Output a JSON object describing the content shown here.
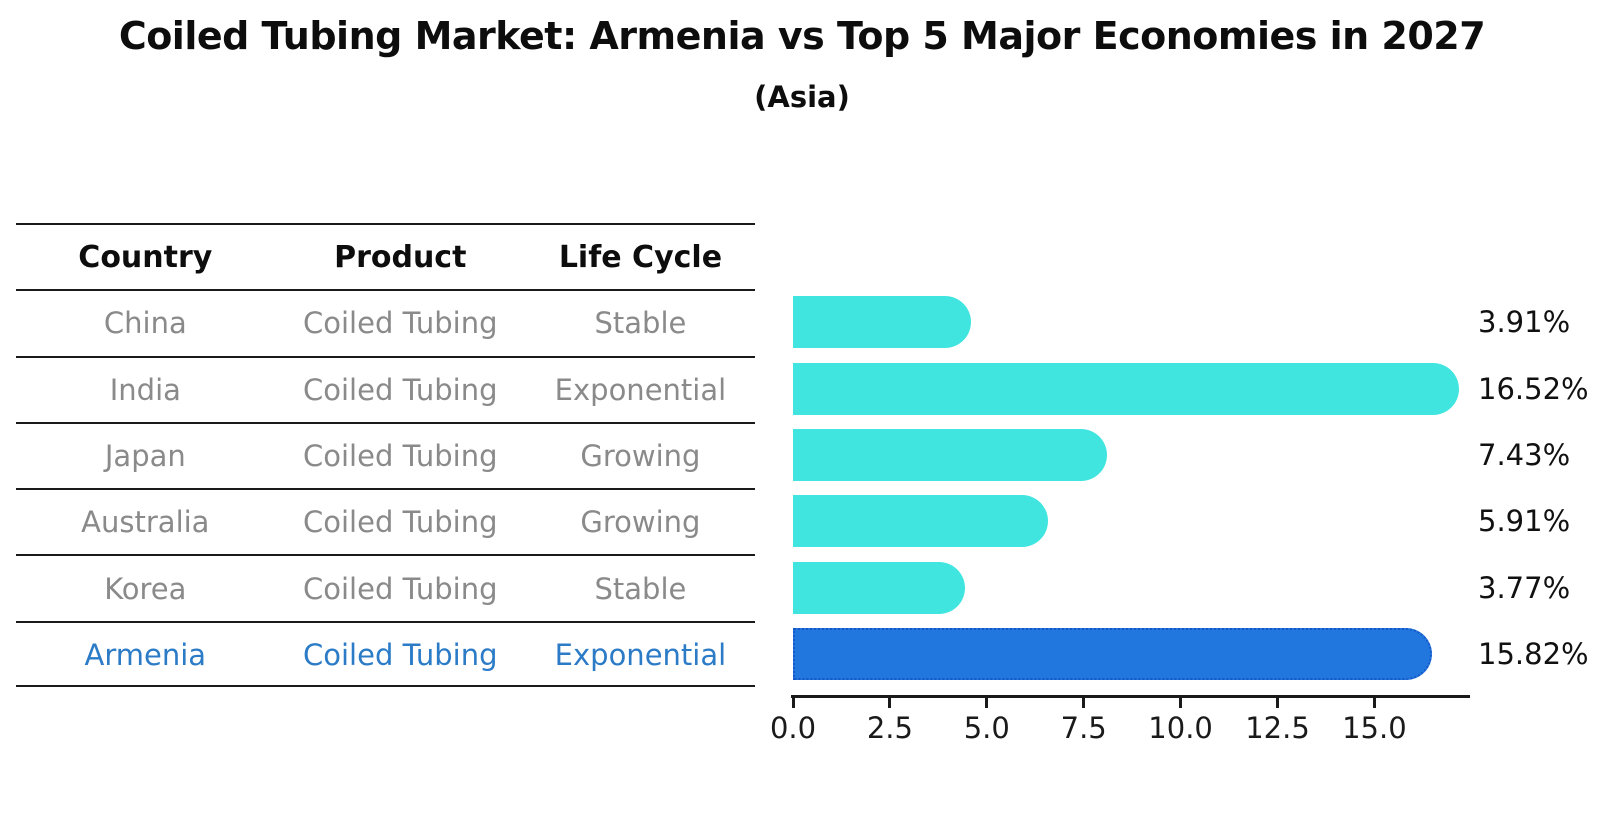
{
  "title": "Coiled Tubing Market: Armenia vs Top 5 Major Economies in 2027",
  "subtitle": "(Asia)",
  "table": {
    "headers": [
      "Country",
      "Product",
      "Life Cycle"
    ],
    "rows": [
      {
        "cells": [
          "China",
          "Coiled Tubing",
          "Stable"
        ],
        "highlighted": false
      },
      {
        "cells": [
          "India",
          "Coiled Tubing",
          "Exponential"
        ],
        "highlighted": false
      },
      {
        "cells": [
          "Japan",
          "Coiled Tubing",
          "Growing"
        ],
        "highlighted": false
      },
      {
        "cells": [
          "Australia",
          "Coiled Tubing",
          "Growing"
        ],
        "highlighted": false
      },
      {
        "cells": [
          "Korea",
          "Coiled Tubing",
          "Stable"
        ],
        "highlighted": false
      },
      {
        "cells": [
          "Armenia",
          "Coiled Tubing",
          "Exponential"
        ],
        "highlighted": true
      }
    ]
  },
  "chart_data": {
    "type": "bar",
    "orientation": "horizontal",
    "categories": [
      "China",
      "India",
      "Japan",
      "Australia",
      "Korea",
      "Armenia"
    ],
    "values": [
      3.91,
      16.52,
      7.43,
      5.91,
      3.77,
      15.82
    ],
    "bar_labels": [
      "3.91%",
      "16.52%",
      "7.43%",
      "5.91%",
      "3.77%",
      "15.82%"
    ],
    "highlight_category": "Armenia",
    "xticks": [
      0.0,
      2.5,
      5.0,
      7.5,
      10.0,
      12.5,
      15.0
    ],
    "xtick_labels": [
      "0.0",
      "2.5",
      "5.0",
      "7.5",
      "10.0",
      "12.5",
      "15.0"
    ],
    "xlim": [
      0,
      17.45
    ],
    "grid": false,
    "legend": "none",
    "colors": {
      "bar": "#40E5E0",
      "highlight_bar": "#2277DF",
      "highlight_bar_edge": "#1559C8",
      "row_text": "#8a8a8a",
      "highlight_row_text": "#2b7bc7",
      "value_label_text": "#111111"
    }
  }
}
